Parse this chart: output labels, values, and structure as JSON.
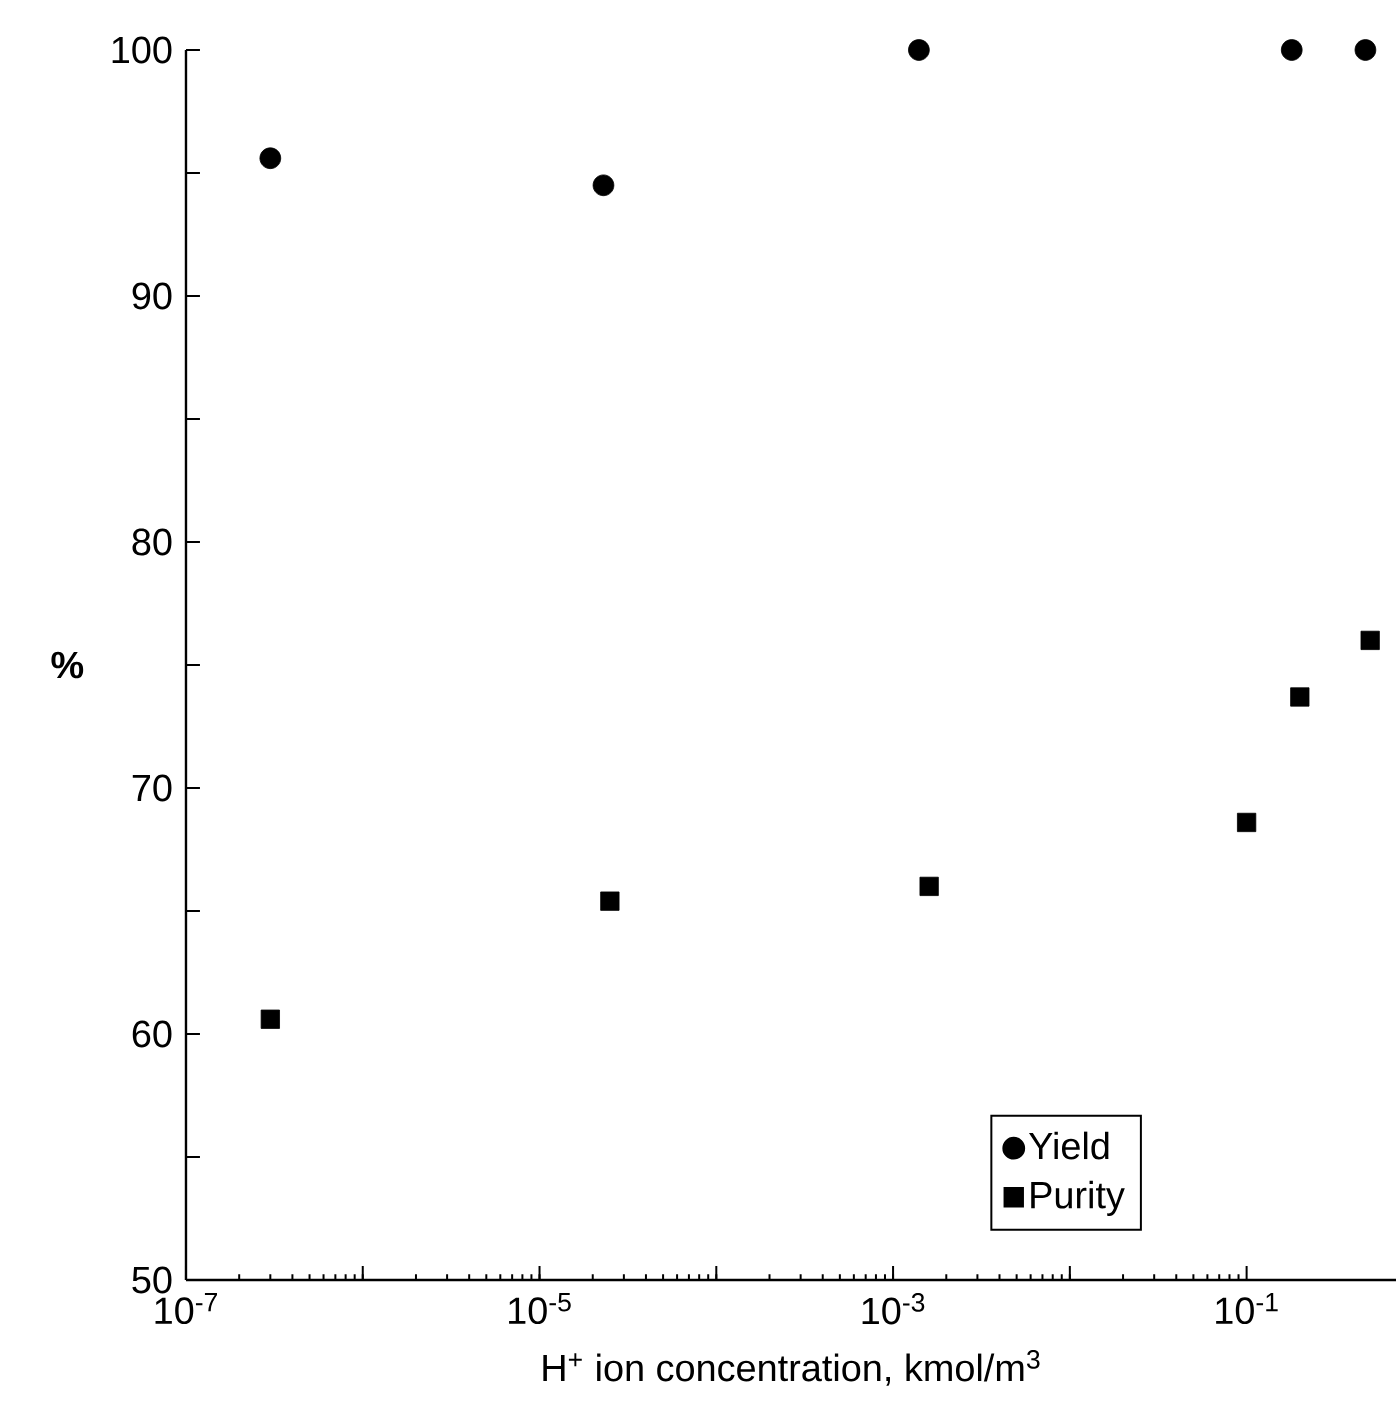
{
  "chart_data": {
    "type": "scatter",
    "xlabel": "H$^{+}$ ion concentration, kmol/m$^{3}$",
    "ylabel": "%",
    "log": "x",
    "legend": "bottom right",
    "xlim": [
      1e-07,
      0.7
    ],
    "ylim": [
      50,
      100
    ],
    "xticks": [
      {
        "value": 1e-07,
        "label": "10$^{-7}$"
      },
      {
        "value": 1e-06,
        "label": null
      },
      {
        "value": 1e-05,
        "label": "10$^{-5}$"
      },
      {
        "value": 0.0001,
        "label": null
      },
      {
        "value": 0.001,
        "label": "10$^{-3}$"
      },
      {
        "value": 0.01,
        "label": null
      },
      {
        "value": 0.1,
        "label": "10$^{-1}$"
      }
    ],
    "yticks": [
      50,
      {
        "value": 55,
        "label": null
      },
      60,
      {
        "value": 65,
        "label": null
      },
      70,
      {
        "value": 75,
        "label": null
      },
      80,
      {
        "value": 85,
        "label": null
      },
      90,
      {
        "value": 95,
        "label": null
      },
      100
    ],
    "series": [
      {
        "name": "Yield",
        "color": "#000000",
        "marker": "circle",
        "x": [
          3e-07,
          2.3e-05,
          0.0014,
          0.18,
          0.47
        ],
        "values": [
          95.6,
          94.5,
          100,
          100,
          100
        ]
      },
      {
        "name": "Purity",
        "color": "#000000",
        "marker": "square",
        "x": [
          3e-07,
          2.5e-05,
          0.0016,
          0.1,
          0.2,
          0.5
        ],
        "values": [
          60.6,
          65.4,
          66.0,
          68.6,
          73.7,
          76.0
        ]
      }
    ]
  }
}
